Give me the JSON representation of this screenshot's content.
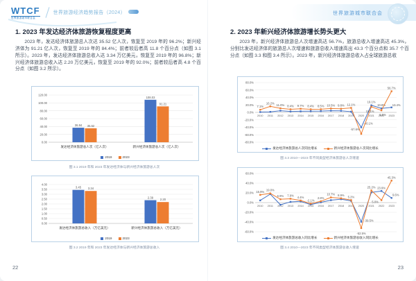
{
  "header_left": {
    "logo_main": "WTCF",
    "logo_sub": "世界旅游城市联合会",
    "report_title": "世界旅游经济趋势报告（2024）"
  },
  "header_right": {
    "org_name": "世界旅游城市联合会"
  },
  "left_page": {
    "heading": "1. 2023 年发达经济体旅游恢复程度更高",
    "paragraph": "2023 年，发达经济体旅游总人次达 35.52 亿人次，恢复至 2019 年的 96.2%；新兴经济体为 91.21 亿人次，恢复至 2019 年的 84.4%；前者较后者高 11.8 个百分点（如图 3.1 所示）。2023 年，发达经济体旅游总收入达 3.34 万亿美元，恢复至 2019 年的 96.8%；新兴经济体旅游总收入达 2.20 万亿美元，恢复至 2019 年的 92.0%；前者较后者高 4.8 个百分点（如图 3.2 所示）。",
    "fig1_caption": "图 3.1 2019 年和 2023 年发达经济体与新兴经济体旅游总人次",
    "fig2_caption": "图 3.2 2019 年和 2023 年发达经济体与新兴经济体旅游总收入",
    "page_number": "22"
  },
  "right_page": {
    "heading": "2. 2023 年新兴经济体旅游增长势头更大",
    "paragraph": "2023 年，新兴经济体旅游总人次增速高达 56.7%，旅游总收入增速高达 45.3%，分别比发达经济体的旅游总人次增速和旅游总收入增速高出 43.3 个百分点和 35.7 个百分点（如图 3.3 和图 3.4 所示）。2023 年，新兴经济体旅游总收入占全球旅游总收",
    "fig3_caption": "图 3.3 2010—2023 年不同类型经济体旅游总人次增速",
    "fig4_caption": "图 3.4 2010—2023 年不同类型经济体旅游总收入增速",
    "page_number": "23"
  },
  "colors": {
    "series_blue": "#4472C4",
    "series_orange": "#ED7D31",
    "header_blue": "#5b9bd5"
  },
  "chart_data": [
    {
      "id": "fig3-1",
      "type": "bar",
      "title": "图 3.1 2019 年和 2023 年发达经济体与新兴经济体旅游总人次",
      "categories": [
        "发达经济体旅游总人次（亿人次）",
        "新兴经济体旅游总人次（亿人次）"
      ],
      "series": [
        {
          "name": "2019",
          "color": "#4472C4",
          "values": [
            36.94,
            108.03
          ],
          "value_labels": [
            "36.94",
            "108.03"
          ]
        },
        {
          "name": "2023",
          "color": "#ED7D31",
          "values": [
            35.52,
            91.21
          ],
          "value_labels": [
            "35.52",
            "91.21"
          ]
        }
      ],
      "ylim": [
        0,
        120
      ],
      "ystep": 20,
      "ytick_labels": [
        "0.00",
        "20.00",
        "40.00",
        "60.00",
        "80.00",
        "100.00",
        "120.00"
      ],
      "grid": true,
      "legend_position": "bottom"
    },
    {
      "id": "fig3-2",
      "type": "bar",
      "title": "图 3.2 2019 年和 2023 年发达经济体与新兴经济体旅游总收入",
      "categories": [
        "发达经济体旅游总收入（万亿美元）",
        "新兴经济体旅游总收入（万亿美元）"
      ],
      "series": [
        {
          "name": "2019",
          "color": "#4472C4",
          "values": [
            3.45,
            2.39
          ],
          "value_labels": [
            "3.45",
            "2.39"
          ]
        },
        {
          "name": "2023",
          "color": "#ED7D31",
          "values": [
            3.34,
            2.2
          ],
          "value_labels": [
            "3.34",
            "2.20"
          ]
        }
      ],
      "ylim": [
        0,
        4
      ],
      "ystep": 0.5,
      "ytick_labels": [
        "0.00",
        "0.50",
        "1.00",
        "1.50",
        "2.00",
        "2.50",
        "3.00",
        "3.50",
        "4.00"
      ],
      "grid": true,
      "legend_position": "bottom"
    },
    {
      "id": "fig3-3",
      "type": "line",
      "title": "图 3.3 2010—2023 年不同类型经济体旅游总人次增速",
      "x": [
        "2010",
        "2011",
        "2012",
        "2013",
        "2014",
        "2015",
        "2016",
        "2017",
        "2018",
        "2019",
        "2020",
        "2021",
        "2022",
        "2023"
      ],
      "ylim": [
        -80,
        80
      ],
      "ystep": 20,
      "ytick_labels": [
        "-80.0%",
        "-60.0%",
        "-40.0%",
        "-20.0%",
        "0.0%",
        "20.0%",
        "40.0%",
        "60.0%",
        "80.0%"
      ],
      "grid": true,
      "legend_position": "bottom",
      "series": [
        {
          "name": "发达经济体旅游总人次同比增长",
          "color": "#4472C4",
          "values": [
            1.0,
            1.5,
            4.5,
            2.5,
            3.0,
            3.3,
            3.6,
            4.5,
            4.2,
            2.0,
            -40.1,
            19.1,
            10.8,
            13.4
          ],
          "labels": [
            null,
            null,
            null,
            null,
            null,
            null,
            null,
            null,
            null,
            null,
            "-40.1%",
            "19.1%",
            "10.8%",
            "13.4%"
          ],
          "label_offsets": [
            null,
            null,
            null,
            null,
            null,
            null,
            null,
            null,
            null,
            null,
            [
              10,
              -4
            ],
            [
              0,
              -3
            ],
            [
              0,
              -3
            ],
            [
              7,
              -2
            ]
          ]
        },
        {
          "name": "新兴经济体旅游总人次同比增长",
          "color": "#ED7D31",
          "values": [
            7.1,
            16.2,
            11.0,
            8.4,
            9.7,
            8.4,
            8.5,
            10.5,
            9.8,
            12.1,
            -57.6,
            15.1,
            5.5,
            56.7
          ],
          "labels": [
            "7.1%",
            "16.2%",
            "11.0%",
            "8.4%",
            "9.7%",
            "8.4%",
            "8.5%",
            "10.5%",
            "9.8%",
            "12.1%",
            "-57.6%",
            "15.1%",
            "5.5%",
            "56.7%"
          ],
          "label_offsets": [
            null,
            null,
            null,
            null,
            null,
            null,
            null,
            null,
            null,
            null,
            [
              -9,
              -5
            ],
            [
              -2,
              8
            ],
            [
              2,
              8
            ],
            [
              0,
              -3
            ]
          ]
        }
      ]
    },
    {
      "id": "fig3-4",
      "type": "line",
      "title": "图 3.4 2010—2023 年不同类型经济体旅游总收入增速",
      "x": [
        "2010",
        "2011",
        "2012",
        "2013",
        "2014",
        "2015",
        "2016",
        "2017",
        "2018",
        "2019",
        "2020",
        "2021",
        "2022",
        "2023"
      ],
      "ylim": [
        -60,
        60
      ],
      "ystep": 20,
      "ytick_labels": [
        "-60.0%",
        "-40.0%",
        "-20.0%",
        "0.0%",
        "20.0%",
        "40.0%",
        "60.0%"
      ],
      "grid": true,
      "legend_position": "bottom",
      "series": [
        {
          "name": "发达经济体旅游总收入同比增长",
          "color": "#4472C4",
          "values": [
            4.5,
            17.5,
            -4.5,
            1.5,
            2.5,
            -4.0,
            0.5,
            5.0,
            7.0,
            3.5,
            -39.5,
            21.0,
            23.9,
            9.6
          ],
          "labels": [
            null,
            null,
            null,
            null,
            null,
            null,
            null,
            null,
            null,
            null,
            "-39.5%",
            null,
            "23.9%",
            "9.6%"
          ],
          "label_offsets": [
            null,
            null,
            null,
            null,
            null,
            null,
            null,
            null,
            null,
            null,
            [
              11,
              0
            ],
            null,
            [
              0,
              -3
            ],
            [
              6,
              -3
            ]
          ]
        },
        {
          "name": "新兴经济体旅游总收入同比增长",
          "color": "#ED7D31",
          "values": [
            15.9,
            19.0,
            6.9,
            7.9,
            4.4,
            -2.1,
            2.8,
            10.7,
            8.9,
            5.2,
            -52.5,
            25.2,
            5.0,
            45.3
          ],
          "labels": [
            "15.9%",
            "19.0%",
            "6.9%",
            "7.9%",
            "4.4%",
            "-2.1%",
            "2.8%",
            "10.7%",
            "8.9%",
            "5.2%",
            "-52.5%",
            "25.2%",
            "5.0%",
            "45.3%"
          ],
          "label_offsets": [
            null,
            null,
            null,
            null,
            null,
            null,
            null,
            null,
            null,
            null,
            [
              0,
              9
            ],
            [
              0,
              -3
            ],
            [
              -9,
              4
            ],
            [
              0,
              -3
            ]
          ]
        }
      ]
    }
  ]
}
